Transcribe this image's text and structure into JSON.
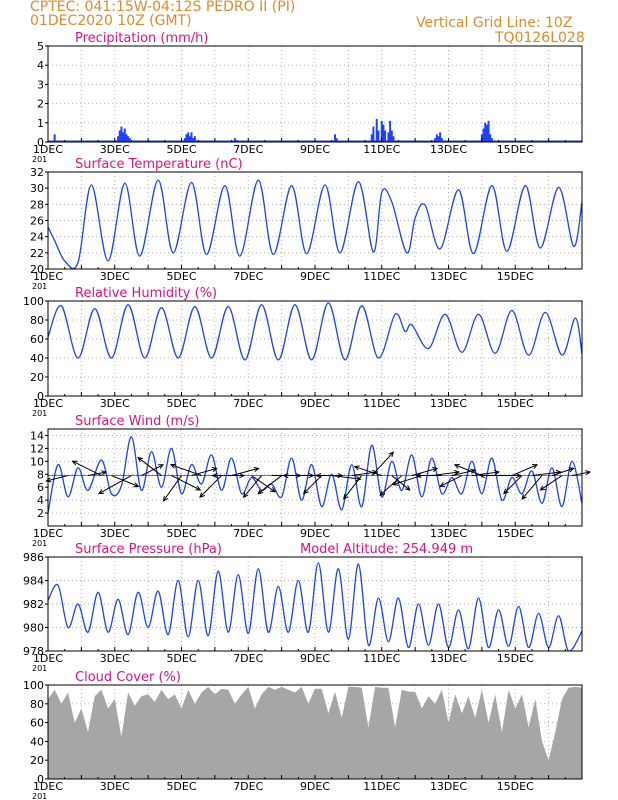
{
  "header": {
    "line1_left": "CPTEC:   041:15W-04:12S   PEDRO II (PI)",
    "line2_left": "01DEC2020 10Z (GMT)",
    "line1_right": "Vertical Grid Line: 10Z",
    "line2_right": "TQ0126L028",
    "color": "#e08a2c"
  },
  "colors": {
    "title": "#e0117f",
    "series": "#2040ff",
    "grid": "#b0b0b0",
    "cloud": "#a6a6a6",
    "axis": "#000000"
  },
  "x_tick_labels": [
    "1DEC",
    "3DEC",
    "5DEC",
    "7DEC",
    "9DEC",
    "11DEC",
    "13DEC",
    "15DEC"
  ],
  "x_partial_label": "201",
  "chart_data": [
    {
      "type": "bar",
      "title": "Precipitation (mm/h)",
      "ylim": [
        0,
        5
      ],
      "yticks": [
        0,
        1,
        2,
        3,
        4,
        5
      ],
      "x": [
        0.2,
        2.1,
        2.15,
        2.2,
        2.25,
        2.3,
        2.35,
        2.4,
        2.45,
        4.1,
        4.15,
        4.2,
        4.25,
        4.3,
        4.35,
        4.4,
        5.6,
        5.65,
        8.6,
        8.65,
        9.7,
        9.75,
        9.85,
        9.9,
        10.0,
        10.05,
        10.1,
        10.2,
        10.25,
        10.3,
        10.35,
        11.6,
        11.65,
        11.7,
        11.75,
        11.8,
        13.0,
        13.05,
        13.1,
        13.15,
        13.2,
        13.25,
        13.3
      ],
      "values": [
        0.4,
        0.3,
        0.6,
        0.8,
        0.5,
        0.7,
        0.4,
        0.3,
        0.2,
        0.2,
        0.4,
        0.5,
        0.3,
        0.5,
        0.2,
        0.3,
        0.2,
        0.1,
        0.4,
        0.2,
        0.4,
        0.8,
        1.2,
        0.6,
        1.1,
        0.9,
        0.6,
        0.5,
        1.1,
        0.6,
        0.3,
        0.2,
        0.4,
        0.3,
        0.5,
        0.2,
        0.4,
        0.7,
        1.0,
        0.9,
        1.1,
        0.4,
        0.2
      ]
    },
    {
      "type": "line",
      "title": "Surface Temperature (nC)",
      "ylim": [
        20,
        32
      ],
      "yticks": [
        20,
        22,
        24,
        26,
        28,
        30,
        32
      ],
      "series": [
        {
          "x": [
            0,
            0.2,
            0.5,
            0.9,
            1.3,
            1.8,
            2.3,
            2.75,
            3.3,
            3.75,
            4.3,
            4.75,
            5.3,
            5.75,
            6.3,
            6.75,
            7.3,
            7.75,
            8.3,
            8.75,
            9.3,
            9.75,
            10.0,
            10.3,
            10.75,
            11.0,
            11.3,
            11.75,
            12.3,
            12.75,
            13.3,
            13.75,
            14.3,
            14.75,
            15.3,
            15.75,
            16.0
          ],
          "values": [
            25.2,
            23.5,
            21.0,
            20.8,
            30.4,
            21.0,
            30.6,
            21.6,
            31.0,
            22.0,
            30.7,
            21.8,
            30.3,
            21.6,
            31.0,
            21.8,
            30.3,
            21.9,
            30.4,
            22.0,
            30.8,
            22.1,
            29.5,
            28.3,
            22.0,
            26.3,
            27.9,
            22.5,
            29.8,
            21.9,
            30.3,
            22.2,
            30.3,
            22.6,
            30.1,
            22.8,
            28.3
          ]
        }
      ]
    },
    {
      "type": "line",
      "title": "Relative Humidity (%)",
      "ylim": [
        0,
        100
      ],
      "yticks": [
        0,
        20,
        40,
        60,
        80,
        100
      ],
      "series": [
        {
          "x": [
            0,
            0.4,
            0.9,
            1.4,
            1.9,
            2.4,
            2.9,
            3.4,
            3.9,
            4.4,
            4.9,
            5.4,
            5.9,
            6.4,
            6.9,
            7.4,
            7.9,
            8.4,
            8.9,
            9.4,
            9.9,
            10.4,
            10.7,
            10.9,
            11.4,
            11.9,
            12.4,
            12.9,
            13.4,
            13.9,
            14.4,
            14.9,
            15.4,
            15.8,
            16.0
          ],
          "values": [
            62,
            95,
            40,
            92,
            40,
            96,
            40,
            93,
            40,
            94,
            40,
            94,
            38,
            96,
            38,
            96,
            38,
            98,
            38,
            95,
            40,
            86,
            68,
            75,
            50,
            86,
            46,
            86,
            45,
            90,
            43,
            88,
            43,
            82,
            44
          ]
        }
      ]
    },
    {
      "type": "line",
      "title": "Surface Wind (m/s)",
      "ylim": [
        0,
        15
      ],
      "yticks": [
        2,
        4,
        6,
        8,
        10,
        12,
        14
      ],
      "series": [
        {
          "x": [
            0,
            0.3,
            0.6,
            0.9,
            1.2,
            1.6,
            1.9,
            2.2,
            2.5,
            2.8,
            3.1,
            3.4,
            3.7,
            4.0,
            4.3,
            4.6,
            4.9,
            5.2,
            5.5,
            5.8,
            6.1,
            6.4,
            6.7,
            7.0,
            7.3,
            7.6,
            7.9,
            8.2,
            8.5,
            8.8,
            9.1,
            9.4,
            9.7,
            10.0,
            10.3,
            10.6,
            10.9,
            11.2,
            11.5,
            11.8,
            12.1,
            12.4,
            12.7,
            13.0,
            13.3,
            13.6,
            13.9,
            14.2,
            14.5,
            14.8,
            15.1,
            15.4,
            15.7,
            16.0
          ],
          "values": [
            2.0,
            9.5,
            4.5,
            9.0,
            5.5,
            10.2,
            5.0,
            6.2,
            13.8,
            5.5,
            11.5,
            6.0,
            12.0,
            5.0,
            9.5,
            6.5,
            11.0,
            5.5,
            10.5,
            5.0,
            7.5,
            5.5,
            6.5,
            4.5,
            10.5,
            4.0,
            9.5,
            3.0,
            8.0,
            2.5,
            9.5,
            3.0,
            12.5,
            4.5,
            10.0,
            5.5,
            11.0,
            4.5,
            10.5,
            5.0,
            7.5,
            5.0,
            10.0,
            5.0,
            10.5,
            4.0,
            7.5,
            5.0,
            8.5,
            3.5,
            9.0,
            3.0,
            10.0,
            3.5
          ]
        }
      ],
      "vectors": [
        {
          "x": 0.6,
          "u": -1.2,
          "v": -0.3
        },
        {
          "x": 1.2,
          "u": 1.0,
          "v": 0.2
        },
        {
          "x": 1.6,
          "u": -1.6,
          "v": 0.8
        },
        {
          "x": 1.9,
          "u": 1.5,
          "v": -0.6
        },
        {
          "x": 2.5,
          "u": -1.8,
          "v": -1.0
        },
        {
          "x": 2.8,
          "u": 1.2,
          "v": 0.6
        },
        {
          "x": 3.4,
          "u": -1.3,
          "v": 1.0
        },
        {
          "x": 3.7,
          "u": 1.6,
          "v": -0.8
        },
        {
          "x": 4.0,
          "u": -1.0,
          "v": -1.4
        },
        {
          "x": 4.3,
          "u": 1.4,
          "v": 0.4
        },
        {
          "x": 4.6,
          "u": -1.7,
          "v": 0.6
        },
        {
          "x": 4.9,
          "u": 1.8,
          "v": 0.0
        },
        {
          "x": 5.2,
          "u": -1.2,
          "v": -1.2
        },
        {
          "x": 5.5,
          "u": 1.5,
          "v": 0.4
        },
        {
          "x": 5.8,
          "u": -1.6,
          "v": 0.0
        },
        {
          "x": 6.1,
          "u": 1.3,
          "v": -0.9
        },
        {
          "x": 6.4,
          "u": -1.0,
          "v": -1.2
        },
        {
          "x": 6.7,
          "u": 1.6,
          "v": 0.0
        },
        {
          "x": 7.0,
          "u": -1.3,
          "v": -1.0
        },
        {
          "x": 7.3,
          "u": 1.2,
          "v": 0.0
        },
        {
          "x": 7.6,
          "u": -1.0,
          "v": 0.0
        },
        {
          "x": 7.9,
          "u": 1.7,
          "v": 0.0
        },
        {
          "x": 8.2,
          "u": -1.0,
          "v": -1.0
        },
        {
          "x": 8.5,
          "u": 1.6,
          "v": -0.2
        },
        {
          "x": 8.8,
          "u": -1.4,
          "v": 0.0
        },
        {
          "x": 9.1,
          "u": 1.4,
          "v": 0.2
        },
        {
          "x": 9.4,
          "u": -1.0,
          "v": -1.3
        },
        {
          "x": 9.7,
          "u": 1.2,
          "v": 1.3
        },
        {
          "x": 10.0,
          "u": -1.5,
          "v": 0.5
        },
        {
          "x": 10.3,
          "u": 1.0,
          "v": -0.8
        },
        {
          "x": 10.6,
          "u": -1.2,
          "v": -1.1
        },
        {
          "x": 10.9,
          "u": 1.4,
          "v": 0.4
        },
        {
          "x": 11.2,
          "u": -1.6,
          "v": -0.5
        },
        {
          "x": 11.5,
          "u": 1.5,
          "v": 0.2
        },
        {
          "x": 11.8,
          "u": -1.4,
          "v": 0.0
        },
        {
          "x": 12.1,
          "u": 1.3,
          "v": 0.3
        },
        {
          "x": 12.4,
          "u": -1.2,
          "v": -0.6
        },
        {
          "x": 12.7,
          "u": 1.5,
          "v": 0.2
        },
        {
          "x": 13.0,
          "u": -1.5,
          "v": 0.6
        },
        {
          "x": 13.3,
          "u": 1.6,
          "v": 0.0
        },
        {
          "x": 13.6,
          "u": -1.2,
          "v": 0.0
        },
        {
          "x": 13.9,
          "u": 1.4,
          "v": 0.6
        },
        {
          "x": 14.2,
          "u": -1.0,
          "v": -1.0
        },
        {
          "x": 14.5,
          "u": 1.6,
          "v": 0.2
        },
        {
          "x": 14.8,
          "u": -1.1,
          "v": -1.3
        },
        {
          "x": 15.1,
          "u": 1.2,
          "v": 0.4
        },
        {
          "x": 15.4,
          "u": -1.2,
          "v": -0.8
        },
        {
          "x": 15.7,
          "u": 1.0,
          "v": 0.2
        }
      ]
    },
    {
      "type": "line",
      "title": "Surface Pressure (hPa)",
      "subtitle": "Model Altitude: 254.949 m",
      "ylim": [
        978,
        986
      ],
      "yticks": [
        978,
        980,
        982,
        984,
        986
      ],
      "series": [
        {
          "x": [
            0,
            0.3,
            0.6,
            0.9,
            1.2,
            1.5,
            1.8,
            2.1,
            2.4,
            2.7,
            3.0,
            3.3,
            3.6,
            3.9,
            4.2,
            4.5,
            4.8,
            5.1,
            5.4,
            5.7,
            6.0,
            6.3,
            6.6,
            6.9,
            7.2,
            7.5,
            7.8,
            8.1,
            8.4,
            8.7,
            9.0,
            9.3,
            9.6,
            9.9,
            10.2,
            10.5,
            10.8,
            11.1,
            11.4,
            11.7,
            12.0,
            12.3,
            12.6,
            12.9,
            13.2,
            13.5,
            13.8,
            14.1,
            14.4,
            14.7,
            15.0,
            15.3,
            15.6,
            16.0
          ],
          "values": [
            982.3,
            983.6,
            980.0,
            982.0,
            979.6,
            983.0,
            979.6,
            982.4,
            979.4,
            983.0,
            980.0,
            983.1,
            979.4,
            984.0,
            979.2,
            984.0,
            979.3,
            984.8,
            979.6,
            984.5,
            979.5,
            985.0,
            979.6,
            983.5,
            979.6,
            984.0,
            979.6,
            985.5,
            979.6,
            985.0,
            979.0,
            985.4,
            978.5,
            982.5,
            978.8,
            982.5,
            978.3,
            982.0,
            978.5,
            982.0,
            978.3,
            981.5,
            978.2,
            982.5,
            978.3,
            981.5,
            978.4,
            981.8,
            978.3,
            981.2,
            978.3,
            981.0,
            978.0,
            979.7
          ]
        }
      ]
    },
    {
      "type": "area",
      "title": "Cloud Cover (%)",
      "ylim": [
        0,
        100
      ],
      "yticks": [
        0,
        20,
        40,
        60,
        80,
        100
      ],
      "series": [
        {
          "x": [
            0,
            0.2,
            0.4,
            0.6,
            0.8,
            1.0,
            1.2,
            1.4,
            1.6,
            1.8,
            2.0,
            2.2,
            2.4,
            2.6,
            2.8,
            3.0,
            3.2,
            3.4,
            3.6,
            3.8,
            4.0,
            4.2,
            4.4,
            4.6,
            4.8,
            5.0,
            5.2,
            5.4,
            5.6,
            5.8,
            6.0,
            6.2,
            6.4,
            6.6,
            6.8,
            7.0,
            7.2,
            7.4,
            7.6,
            7.8,
            8.0,
            8.2,
            8.4,
            8.6,
            8.8,
            9.0,
            9.2,
            9.4,
            9.6,
            9.8,
            10.0,
            10.2,
            10.4,
            10.6,
            10.8,
            11.0,
            11.2,
            11.4,
            11.6,
            11.8,
            12.0,
            12.2,
            12.4,
            12.6,
            12.8,
            13.0,
            13.2,
            13.4,
            13.6,
            13.8,
            14.0,
            14.2,
            14.4,
            14.6,
            14.8,
            15.0,
            15.2,
            15.4,
            15.6,
            15.8,
            16.0
          ],
          "values": [
            85,
            95,
            80,
            92,
            60,
            75,
            50,
            88,
            95,
            75,
            85,
            45,
            92,
            78,
            88,
            90,
            82,
            95,
            85,
            90,
            75,
            95,
            80,
            92,
            98,
            90,
            96,
            95,
            80,
            90,
            98,
            75,
            90,
            98,
            95,
            98,
            95,
            92,
            98,
            80,
            96,
            96,
            70,
            93,
            65,
            98,
            98,
            97,
            55,
            98,
            97,
            97,
            55,
            95,
            93,
            93,
            75,
            88,
            80,
            95,
            60,
            90,
            70,
            88,
            65,
            95,
            60,
            90,
            50,
            95,
            75,
            90,
            55,
            85,
            40,
            20,
            50,
            85,
            97,
            98,
            97
          ]
        }
      ]
    }
  ]
}
